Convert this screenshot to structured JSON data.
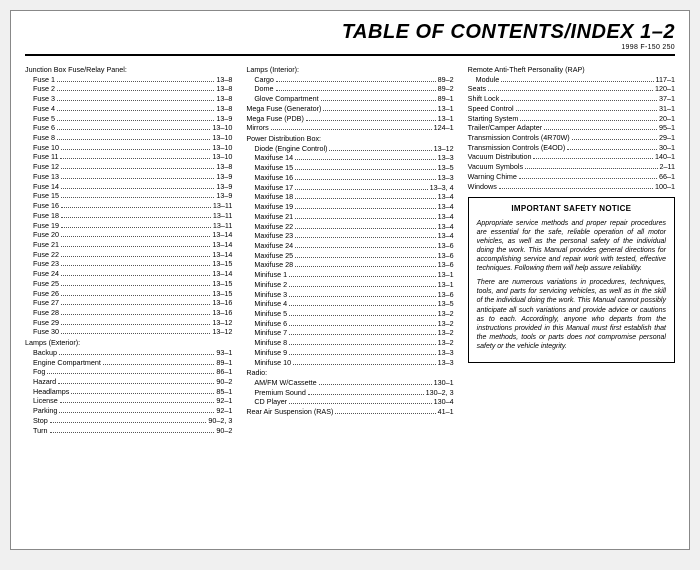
{
  "header": {
    "title": "TABLE OF CONTENTS/INDEX  1–2",
    "sub": "1998 F-150 250"
  },
  "col1": {
    "group1": "Junction Box Fuse/Relay Panel:",
    "items1": [
      {
        "l": "Fuse 1",
        "p": "13–8"
      },
      {
        "l": "Fuse 2",
        "p": "13–8"
      },
      {
        "l": "Fuse 3",
        "p": "13–8"
      },
      {
        "l": "Fuse 4",
        "p": "13–8"
      },
      {
        "l": "Fuse 5",
        "p": "13–9"
      },
      {
        "l": "Fuse 6",
        "p": "13–10"
      },
      {
        "l": "Fuse 8",
        "p": "13–10"
      },
      {
        "l": "Fuse 10",
        "p": "13–10"
      },
      {
        "l": "Fuse 11",
        "p": "13–10"
      },
      {
        "l": "Fuse 12",
        "p": "13–8"
      },
      {
        "l": "Fuse 13",
        "p": "13–9"
      },
      {
        "l": "Fuse 14",
        "p": "13–9"
      },
      {
        "l": "Fuse 15",
        "p": "13–9"
      },
      {
        "l": "Fuse 16",
        "p": "13–11"
      },
      {
        "l": "Fuse 18",
        "p": "13–11"
      },
      {
        "l": "Fuse 19",
        "p": "13–11"
      },
      {
        "l": "Fuse 20",
        "p": "13–14"
      },
      {
        "l": "Fuse 21",
        "p": "13–14"
      },
      {
        "l": "Fuse 22",
        "p": "13–14"
      },
      {
        "l": "Fuse 23",
        "p": "13–15"
      },
      {
        "l": "Fuse 24",
        "p": "13–14"
      },
      {
        "l": "Fuse 25",
        "p": "13–15"
      },
      {
        "l": "Fuse 26",
        "p": "13–15"
      },
      {
        "l": "Fuse 27",
        "p": "13–16"
      },
      {
        "l": "Fuse 28",
        "p": "13–16"
      },
      {
        "l": "Fuse 29",
        "p": "13–12"
      },
      {
        "l": "Fuse 30",
        "p": "13–12"
      }
    ],
    "group2": "Lamps (Exterior):",
    "items2": [
      {
        "l": "Backup",
        "p": "93–1"
      },
      {
        "l": "Engine Compartment",
        "p": "89–1"
      },
      {
        "l": "Fog",
        "p": "86–1"
      },
      {
        "l": "Hazard",
        "p": "90–2"
      },
      {
        "l": "Headlamps",
        "p": "85–1"
      },
      {
        "l": "License",
        "p": "92–1"
      },
      {
        "l": "Parking",
        "p": "92–1"
      },
      {
        "l": "Stop",
        "p": "90–2, 3"
      },
      {
        "l": "Turn",
        "p": "90–2"
      }
    ]
  },
  "col2": {
    "group1": "Lamps (Interior):",
    "items1": [
      {
        "l": "Cargo",
        "p": "89–2"
      },
      {
        "l": "Dome",
        "p": "89–2"
      },
      {
        "l": "Glove Compartment",
        "p": "89–1"
      }
    ],
    "plain1": [
      {
        "l": "Mega Fuse (Generator)",
        "p": "13–1"
      },
      {
        "l": "Mega Fuse (PDB)",
        "p": "13–1"
      },
      {
        "l": "Mirrors",
        "p": "124–1"
      }
    ],
    "group2": "Power Distribution Box:",
    "items2": [
      {
        "l": "Diode (Engine Control)",
        "p": "13–12"
      },
      {
        "l": "Maxifuse 14",
        "p": "13–3"
      },
      {
        "l": "Maxifuse 15",
        "p": "13–5"
      },
      {
        "l": "Maxifuse 16",
        "p": "13–3"
      },
      {
        "l": "Maxifuse 17",
        "p": "13–3, 4"
      },
      {
        "l": "Maxifuse 18",
        "p": "13–4"
      },
      {
        "l": "Maxifuse 19",
        "p": "13–4"
      },
      {
        "l": "Maxifuse 21",
        "p": "13–4"
      },
      {
        "l": "Maxifuse 22",
        "p": "13–4"
      },
      {
        "l": "Maxifuse 23",
        "p": "13–4"
      },
      {
        "l": "Maxifuse 24",
        "p": "13–6"
      },
      {
        "l": "Maxifuse 25",
        "p": "13–6"
      },
      {
        "l": "Maxifuse 28",
        "p": "13–6"
      },
      {
        "l": "Minifuse 1",
        "p": "13–1"
      },
      {
        "l": "Minifuse 2",
        "p": "13–1"
      },
      {
        "l": "Minifuse 3",
        "p": "13–6"
      },
      {
        "l": "Minifuse 4",
        "p": "13–5"
      },
      {
        "l": "Minifuse 5",
        "p": "13–2"
      },
      {
        "l": "Minifuse 6",
        "p": "13–2"
      },
      {
        "l": "Minifuse 7",
        "p": "13–2"
      },
      {
        "l": "Minifuse 8",
        "p": "13–2"
      },
      {
        "l": "Minifuse 9",
        "p": "13–3"
      },
      {
        "l": "Minifuse 10",
        "p": "13–3"
      }
    ],
    "group3": "Radio:",
    "items3": [
      {
        "l": "AM/FM W/Cassette",
        "p": "130–1"
      },
      {
        "l": "Premium Sound",
        "p": "130–2, 3"
      },
      {
        "l": "CD Player",
        "p": "130–4"
      }
    ],
    "plain2": [
      {
        "l": "Rear Air Suspension (RAS)",
        "p": "41–1"
      }
    ]
  },
  "col3": {
    "group1": "Remote Anti-Theft Personality (RAP)",
    "items1": [
      {
        "l": "Module",
        "p": "117–1"
      }
    ],
    "plain": [
      {
        "l": "Seats",
        "p": "120–1"
      },
      {
        "l": "Shift Lock",
        "p": "37–1"
      },
      {
        "l": "Speed Control",
        "p": "31–1"
      },
      {
        "l": "Starting System",
        "p": "20–1"
      },
      {
        "l": "Trailer/Camper Adapter",
        "p": "95–1"
      },
      {
        "l": "Transmission Controls (4R70W)",
        "p": "29–1"
      },
      {
        "l": "Transmission Controls (E4OD)",
        "p": "30–1"
      },
      {
        "l": "Vacuum Distribution",
        "p": "140–1"
      },
      {
        "l": "Vacuum Symbols",
        "p": "2–11"
      },
      {
        "l": "Warning Chime",
        "p": "66–1"
      },
      {
        "l": "Windows",
        "p": "100–1"
      }
    ]
  },
  "notice": {
    "title": "IMPORTANT SAFETY NOTICE",
    "p1": "Appropriate service methods and proper repair procedures are essential for the safe, reliable operation of all motor vehicles, as well as the personal safety of the individual doing the work. This Manual provides general directions for accomplishing service and repair work with tested, effective techniques. Following them will help assure reliability.",
    "p2": "There are numerous variations in procedures, techniques, tools, and parts for servicing vehicles, as well as in the skill of the individual doing the work. This Manual cannot possibly anticipate all such variations and provide advice or cautions as to each. Accordingly, anyone who departs from the instructions provided in this Manual must first establish that the methods, tools or parts does not compromise personal safety or the vehicle integrity."
  }
}
